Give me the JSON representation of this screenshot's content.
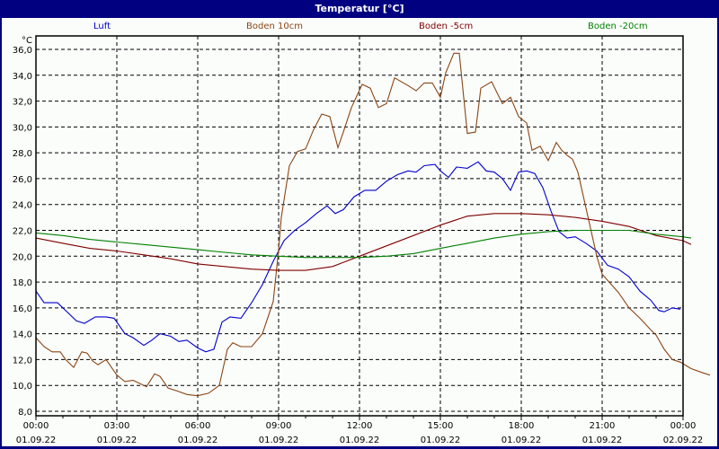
{
  "window": {
    "title": "Temperatur [°C]"
  },
  "chart_data": {
    "type": "line",
    "title": "Temperatur [°C]",
    "ylabel": "°C",
    "xlabel": "",
    "ylim": [
      8,
      36
    ],
    "yticks": [
      "36,0",
      "34,0",
      "32,0",
      "30,0",
      "28,0",
      "26,0",
      "24,0",
      "22,0",
      "20,0",
      "18,0",
      "16,0",
      "14,0",
      "12,0",
      "10,0",
      "8,0"
    ],
    "xticks": [
      {
        "time": "00:00",
        "date": "01.09.22"
      },
      {
        "time": "03:00",
        "date": "01.09.22"
      },
      {
        "time": "06:00",
        "date": "01.09.22"
      },
      {
        "time": "09:00",
        "date": "01.09.22"
      },
      {
        "time": "12:00",
        "date": "01.09.22"
      },
      {
        "time": "15:00",
        "date": "01.09.22"
      },
      {
        "time": "18:00",
        "date": "01.09.22"
      },
      {
        "time": "21:00",
        "date": "01.09.22"
      },
      {
        "time": "00:00",
        "date": "02.09.22"
      }
    ],
    "grid": true,
    "legend_position": "top",
    "series": [
      {
        "name": "Luft",
        "color": "#0000cc",
        "points": [
          [
            0,
            17.3
          ],
          [
            0.3,
            16.4
          ],
          [
            0.8,
            16.4
          ],
          [
            1.0,
            16.0
          ],
          [
            1.5,
            15.0
          ],
          [
            1.8,
            14.8
          ],
          [
            2.2,
            15.3
          ],
          [
            2.6,
            15.3
          ],
          [
            2.9,
            15.2
          ],
          [
            3.3,
            14.0
          ],
          [
            3.6,
            13.7
          ],
          [
            4.0,
            13.1
          ],
          [
            4.3,
            13.5
          ],
          [
            4.6,
            14.0
          ],
          [
            5.0,
            13.8
          ],
          [
            5.3,
            13.4
          ],
          [
            5.6,
            13.5
          ],
          [
            6.0,
            12.9
          ],
          [
            6.3,
            12.6
          ],
          [
            6.6,
            12.8
          ],
          [
            6.9,
            14.9
          ],
          [
            7.2,
            15.3
          ],
          [
            7.6,
            15.2
          ],
          [
            8.0,
            16.4
          ],
          [
            8.4,
            17.8
          ],
          [
            8.8,
            19.6
          ],
          [
            9.2,
            21.2
          ],
          [
            9.6,
            22.0
          ],
          [
            10.0,
            22.6
          ],
          [
            10.4,
            23.3
          ],
          [
            10.8,
            23.9
          ],
          [
            11.1,
            23.3
          ],
          [
            11.4,
            23.6
          ],
          [
            11.8,
            24.6
          ],
          [
            12.2,
            25.1
          ],
          [
            12.6,
            25.1
          ],
          [
            13.0,
            25.8
          ],
          [
            13.4,
            26.3
          ],
          [
            13.8,
            26.6
          ],
          [
            14.1,
            26.5
          ],
          [
            14.4,
            27.0
          ],
          [
            14.8,
            27.1
          ],
          [
            15.0,
            26.6
          ],
          [
            15.3,
            26.1
          ],
          [
            15.6,
            26.9
          ],
          [
            16.0,
            26.8
          ],
          [
            16.4,
            27.3
          ],
          [
            16.7,
            26.6
          ],
          [
            17.0,
            26.5
          ],
          [
            17.3,
            26.0
          ],
          [
            17.6,
            25.1
          ],
          [
            17.9,
            26.5
          ],
          [
            18.2,
            26.6
          ],
          [
            18.5,
            26.4
          ],
          [
            18.8,
            25.3
          ],
          [
            19.1,
            23.5
          ],
          [
            19.4,
            21.9
          ],
          [
            19.7,
            21.4
          ],
          [
            20.0,
            21.5
          ],
          [
            20.4,
            21.0
          ],
          [
            20.8,
            20.4
          ],
          [
            21.2,
            19.3
          ],
          [
            21.6,
            19.0
          ],
          [
            22.0,
            18.4
          ],
          [
            22.4,
            17.3
          ],
          [
            22.8,
            16.6
          ],
          [
            23.1,
            15.8
          ],
          [
            23.3,
            15.7
          ],
          [
            23.6,
            16.0
          ],
          [
            23.9,
            15.9
          ]
        ]
      },
      {
        "name": "Boden 10cm",
        "color": "#8b4513",
        "points": [
          [
            0,
            13.7
          ],
          [
            0.3,
            13.0
          ],
          [
            0.6,
            12.6
          ],
          [
            0.9,
            12.6
          ],
          [
            1.1,
            12.0
          ],
          [
            1.4,
            11.4
          ],
          [
            1.7,
            12.6
          ],
          [
            1.9,
            12.5
          ],
          [
            2.1,
            11.9
          ],
          [
            2.3,
            11.6
          ],
          [
            2.6,
            12.0
          ],
          [
            3.0,
            10.8
          ],
          [
            3.3,
            10.3
          ],
          [
            3.6,
            10.4
          ],
          [
            3.9,
            10.1
          ],
          [
            4.1,
            9.9
          ],
          [
            4.4,
            10.9
          ],
          [
            4.6,
            10.7
          ],
          [
            4.9,
            9.8
          ],
          [
            5.2,
            9.6
          ],
          [
            5.6,
            9.3
          ],
          [
            6.0,
            9.2
          ],
          [
            6.4,
            9.4
          ],
          [
            6.8,
            10.0
          ],
          [
            7.1,
            12.8
          ],
          [
            7.3,
            13.3
          ],
          [
            7.6,
            13.0
          ],
          [
            8.0,
            13.0
          ],
          [
            8.4,
            14.0
          ],
          [
            8.8,
            16.5
          ],
          [
            9.0,
            20.5
          ],
          [
            9.1,
            23.0
          ],
          [
            9.4,
            27.0
          ],
          [
            9.7,
            28.1
          ],
          [
            10.0,
            28.3
          ],
          [
            10.3,
            29.8
          ],
          [
            10.6,
            31.0
          ],
          [
            10.9,
            30.8
          ],
          [
            11.2,
            28.4
          ],
          [
            11.4,
            29.6
          ],
          [
            11.7,
            31.5
          ],
          [
            12.1,
            33.3
          ],
          [
            12.4,
            33.0
          ],
          [
            12.7,
            31.5
          ],
          [
            13.0,
            31.8
          ],
          [
            13.3,
            33.8
          ],
          [
            13.8,
            33.2
          ],
          [
            14.1,
            32.8
          ],
          [
            14.4,
            33.4
          ],
          [
            14.7,
            33.4
          ],
          [
            15.0,
            32.3
          ],
          [
            15.2,
            34.2
          ],
          [
            15.5,
            35.7
          ],
          [
            15.7,
            35.7
          ],
          [
            16.0,
            29.5
          ],
          [
            16.3,
            29.6
          ],
          [
            16.5,
            33.0
          ],
          [
            16.9,
            33.5
          ],
          [
            17.3,
            31.8
          ],
          [
            17.6,
            32.3
          ],
          [
            17.9,
            30.8
          ],
          [
            18.2,
            30.3
          ],
          [
            18.4,
            28.2
          ],
          [
            18.7,
            28.5
          ],
          [
            19.0,
            27.4
          ],
          [
            19.3,
            28.8
          ],
          [
            19.5,
            28.2
          ],
          [
            19.7,
            27.8
          ],
          [
            19.9,
            27.5
          ],
          [
            20.1,
            26.5
          ],
          [
            20.5,
            22.8
          ],
          [
            20.8,
            20.0
          ],
          [
            21.0,
            18.6
          ],
          [
            21.3,
            17.9
          ],
          [
            21.6,
            17.2
          ],
          [
            22.0,
            16.0
          ],
          [
            22.4,
            15.2
          ],
          [
            22.8,
            14.3
          ],
          [
            23.0,
            13.9
          ],
          [
            23.3,
            12.8
          ],
          [
            23.6,
            12.0
          ],
          [
            23.9,
            11.8
          ],
          [
            24.3,
            11.3
          ],
          [
            24.7,
            11.0
          ],
          [
            25.0,
            10.8
          ]
        ]
      },
      {
        "name": "Boden -5cm",
        "color": "#800000",
        "points": [
          [
            0,
            21.4
          ],
          [
            1,
            21.0
          ],
          [
            2,
            20.6
          ],
          [
            3,
            20.4
          ],
          [
            4,
            20.1
          ],
          [
            5,
            19.8
          ],
          [
            6,
            19.4
          ],
          [
            7,
            19.2
          ],
          [
            8,
            19.0
          ],
          [
            9,
            18.9
          ],
          [
            10,
            18.9
          ],
          [
            11,
            19.2
          ],
          [
            12,
            20.0
          ],
          [
            13,
            20.8
          ],
          [
            14,
            21.6
          ],
          [
            15,
            22.4
          ],
          [
            16,
            23.1
          ],
          [
            17,
            23.3
          ],
          [
            18,
            23.3
          ],
          [
            19,
            23.2
          ],
          [
            20,
            23.0
          ],
          [
            21,
            22.7
          ],
          [
            22,
            22.3
          ],
          [
            23,
            21.6
          ],
          [
            24,
            21.2
          ],
          [
            24.3,
            20.9
          ]
        ]
      },
      {
        "name": "Boden -20cm",
        "color": "#008000",
        "points": [
          [
            0,
            21.8
          ],
          [
            1,
            21.6
          ],
          [
            2,
            21.3
          ],
          [
            3,
            21.1
          ],
          [
            4,
            20.9
          ],
          [
            5,
            20.7
          ],
          [
            6,
            20.5
          ],
          [
            7,
            20.3
          ],
          [
            8,
            20.1
          ],
          [
            9,
            20.0
          ],
          [
            10,
            19.9
          ],
          [
            11,
            19.9
          ],
          [
            12,
            19.9
          ],
          [
            13,
            20.0
          ],
          [
            14,
            20.2
          ],
          [
            15,
            20.6
          ],
          [
            16,
            21.0
          ],
          [
            17,
            21.4
          ],
          [
            18,
            21.7
          ],
          [
            19,
            21.9
          ],
          [
            20,
            22.0
          ],
          [
            21,
            22.0
          ],
          [
            22,
            22.0
          ],
          [
            23,
            21.7
          ],
          [
            24,
            21.5
          ],
          [
            24.3,
            21.4
          ]
        ]
      }
    ]
  },
  "legend": [
    {
      "label": "Luft",
      "color": "#0000cc"
    },
    {
      "label": "Boden 10cm",
      "color": "#8b4513"
    },
    {
      "label": "Boden -5cm",
      "color": "#800000"
    },
    {
      "label": "Boden -20cm",
      "color": "#008000"
    }
  ]
}
